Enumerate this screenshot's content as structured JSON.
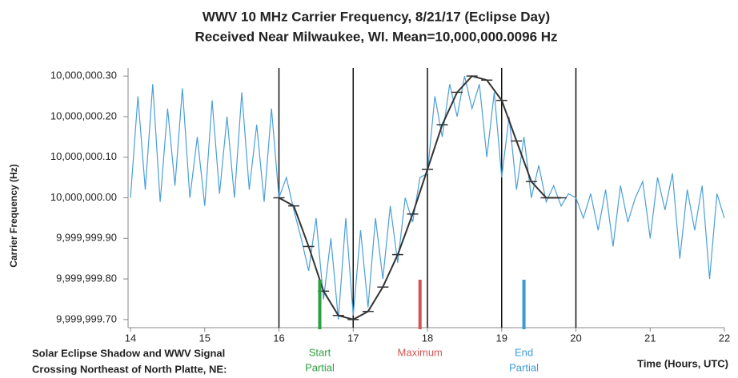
{
  "chart_data": {
    "type": "line",
    "title": [
      "WWV 10 MHz Carrier Frequency, 8/21/17 (Eclipse Day)",
      "Received Near Milwaukee, WI.  Mean=10,000,000.0096 Hz"
    ],
    "xlabel": "Time (Hours, UTC)",
    "ylabel": "Carrier Frequency (Hz)",
    "xlim": [
      14,
      22
    ],
    "xticks": [
      14,
      15,
      16,
      17,
      18,
      19,
      20,
      21,
      22
    ],
    "ylim": [
      9999999.68,
      10000000.32
    ],
    "yticks": [
      {
        "value": 9999999.7,
        "label": "9,999,999.70"
      },
      {
        "value": 9999999.8,
        "label": "9,999,999.80"
      },
      {
        "value": 9999999.9,
        "label": "9,999,999.90"
      },
      {
        "value": 10000000.0,
        "label": "10,000,000.00"
      },
      {
        "value": 10000000.1,
        "label": "10,000,000.10"
      },
      {
        "value": 10000000.2,
        "label": "10,000,000.20"
      },
      {
        "value": 10000000.3,
        "label": "10,000,000.30"
      }
    ],
    "vlines": [
      16,
      17,
      18,
      19,
      20
    ],
    "series": [
      {
        "color": "#4a9fd8",
        "x": [
          14.0,
          14.1,
          14.2,
          14.3,
          14.4,
          14.5,
          14.6,
          14.7,
          14.8,
          14.9,
          15.0,
          15.1,
          15.2,
          15.3,
          15.4,
          15.5,
          15.6,
          15.7,
          15.8,
          15.9,
          16.0,
          16.1,
          16.2,
          16.3,
          16.4,
          16.5,
          16.6,
          16.7,
          16.8,
          16.9,
          17.0,
          17.1,
          17.2,
          17.3,
          17.4,
          17.5,
          17.6,
          17.7,
          17.8,
          17.9,
          18.0,
          18.1,
          18.2,
          18.3,
          18.4,
          18.5,
          18.6,
          18.7,
          18.8,
          18.9,
          19.0,
          19.1,
          19.2,
          19.3,
          19.4,
          19.5,
          19.6,
          19.7,
          19.8,
          19.9,
          20.0,
          20.1,
          20.2,
          20.3,
          20.4,
          20.5,
          20.6,
          20.7,
          20.8,
          20.9,
          21.0,
          21.1,
          21.2,
          21.3,
          21.4,
          21.5,
          21.6,
          21.7,
          21.8,
          21.9,
          22.0
        ],
        "values": [
          10000000.0,
          10000000.25,
          10000000.02,
          10000000.28,
          9999999.99,
          10000000.22,
          10000000.03,
          10000000.27,
          10000000.0,
          10000000.15,
          9999999.98,
          10000000.24,
          10000000.01,
          10000000.2,
          10000000.0,
          10000000.26,
          10000000.02,
          10000000.18,
          9999999.99,
          10000000.22,
          10000000.0,
          10000000.05,
          9999999.97,
          9999999.9,
          9999999.82,
          9999999.95,
          9999999.75,
          9999999.9,
          9999999.7,
          9999999.95,
          9999999.71,
          9999999.92,
          9999999.73,
          9999999.95,
          9999999.8,
          9999999.98,
          9999999.84,
          10000000.0,
          9999999.94,
          10000000.05,
          10000000.06,
          10000000.25,
          10000000.15,
          10000000.28,
          10000000.2,
          10000000.3,
          10000000.22,
          10000000.28,
          10000000.1,
          10000000.26,
          10000000.05,
          10000000.2,
          10000000.02,
          10000000.15,
          10000000.0,
          10000000.08,
          9999999.99,
          10000000.03,
          9999999.98,
          10000000.01,
          10000000.0,
          9999999.95,
          10000000.01,
          9999999.92,
          10000000.02,
          9999999.88,
          10000000.03,
          9999999.94,
          10000000.0,
          10000000.04,
          9999999.9,
          10000000.05,
          9999999.97,
          10000000.06,
          9999999.85,
          10000000.02,
          9999999.92,
          10000000.03,
          9999999.8,
          10000000.01,
          9999999.95
        ]
      },
      {
        "color": "#333333",
        "x": [
          16.0,
          16.2,
          16.4,
          16.6,
          16.8,
          17.0,
          17.2,
          17.4,
          17.6,
          17.8,
          18.0,
          18.2,
          18.4,
          18.6,
          18.8,
          19.0,
          19.2,
          19.4,
          19.6,
          19.8
        ],
        "values": [
          10000000.0,
          9999999.98,
          9999999.88,
          9999999.77,
          9999999.71,
          9999999.7,
          9999999.72,
          9999999.78,
          9999999.86,
          9999999.96,
          10000000.07,
          10000000.18,
          10000000.26,
          10000000.3,
          10000000.29,
          10000000.24,
          10000000.14,
          10000000.04,
          10000000.0,
          10000000.0
        ]
      }
    ],
    "events": [
      {
        "x": 16.55,
        "color": "#2e9e3e",
        "label": [
          "Start",
          "Partial"
        ]
      },
      {
        "x": 17.9,
        "color": "#d05555",
        "label": [
          "Maximum"
        ]
      },
      {
        "x": 19.3,
        "color": "#3a9ad9",
        "label": [
          "End",
          "Partial"
        ]
      }
    ],
    "note": [
      "Solar Eclipse Shadow and WWV Signal",
      "Crossing Northeast of North Platte, NE:"
    ]
  }
}
